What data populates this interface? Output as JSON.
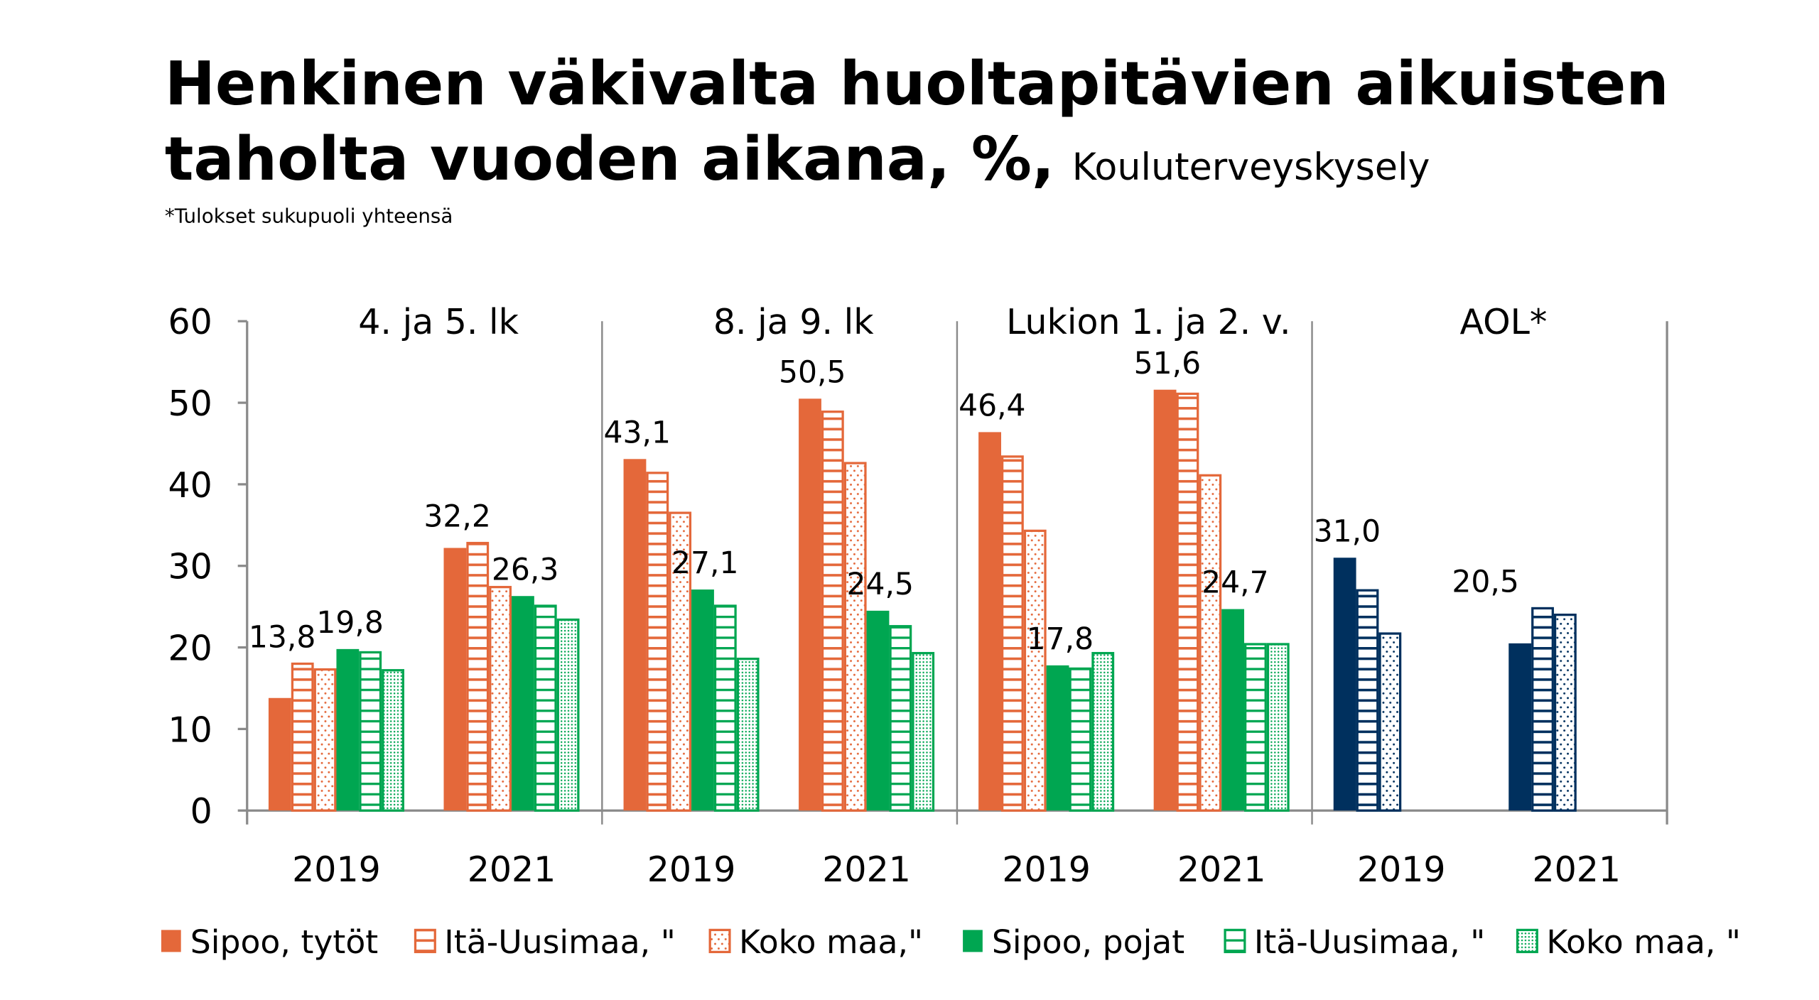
{
  "chart_data": {
    "type": "bar",
    "title": "Henkinen väkivalta huoltapitävien aikuisten taholta vuoden aikana, %,",
    "title_line1": "Henkinen väkivalta huoltapitävien aikuisten",
    "title_line2": "taholta vuoden aikana, %,",
    "subtitle": "Kouluterveyskysely",
    "note": "*Tulokset sukupuoli yhteensä",
    "ylim": [
      0,
      60
    ],
    "yticks": [
      "0",
      "10",
      "20",
      "30",
      "40",
      "50",
      "60"
    ],
    "grid": false,
    "legend_position": "bottom",
    "colors": {
      "girls": "#E4683A",
      "boys": "#00A651",
      "aol": "#00305E"
    },
    "panels": [
      {
        "label": "4. ja 5. lk",
        "years": [
          {
            "year": "2019",
            "values": [
              13.8,
              18.0,
              17.3,
              19.8,
              19.4,
              17.2
            ],
            "labels": [
              "13,8",
              "",
              "",
              "19,8",
              "",
              ""
            ]
          },
          {
            "year": "2021",
            "values": [
              32.2,
              32.8,
              27.4,
              26.3,
              25.1,
              23.4
            ],
            "labels": [
              "32,2",
              "",
              "",
              "26,3",
              "",
              ""
            ]
          }
        ]
      },
      {
        "label": "8. ja 9. lk",
        "years": [
          {
            "year": "2019",
            "values": [
              43.1,
              41.4,
              36.5,
              27.1,
              25.1,
              18.6
            ],
            "labels": [
              "43,1",
              "",
              "",
              "27,1",
              "",
              ""
            ]
          },
          {
            "year": "2021",
            "values": [
              50.5,
              48.9,
              42.6,
              24.5,
              22.6,
              19.3
            ],
            "labels": [
              "50,5",
              "",
              "",
              "24,5",
              "",
              ""
            ]
          }
        ]
      },
      {
        "label": "Lukion 1. ja 2. v.",
        "years": [
          {
            "year": "2019",
            "values": [
              46.4,
              43.4,
              34.3,
              17.8,
              17.4,
              19.3
            ],
            "labels": [
              "46,4",
              "",
              "",
              "17,8",
              "",
              ""
            ]
          },
          {
            "year": "2021",
            "values": [
              51.6,
              51.1,
              41.1,
              24.7,
              20.4,
              20.4
            ],
            "labels": [
              "51,6",
              "",
              "",
              "24,7",
              "",
              ""
            ]
          }
        ]
      },
      {
        "label": "AOL*",
        "years": [
          {
            "year": "2019",
            "values": [
              31.0,
              27.0,
              21.7
            ],
            "labels": [
              "31,0",
              "",
              ""
            ]
          },
          {
            "year": "2021",
            "values": [
              20.5,
              24.8,
              24.0
            ],
            "labels": [
              "20,5",
              "",
              ""
            ]
          }
        ]
      }
    ],
    "series": [
      {
        "name": "Sipoo, tytöt",
        "pattern": "solid",
        "color": "#E4683A"
      },
      {
        "name": "Itä-Uusimaa, \"",
        "pattern": "horizontal-lines",
        "color": "#E4683A"
      },
      {
        "name": "Koko maa,\"",
        "pattern": "dots",
        "color": "#E4683A"
      },
      {
        "name": "Sipoo, pojat",
        "pattern": "solid",
        "color": "#00A651"
      },
      {
        "name": "Itä-Uusimaa, \"",
        "pattern": "horizontal-lines",
        "color": "#00A651"
      },
      {
        "name": "Koko maa, \"",
        "pattern": "dense-dots",
        "color": "#00A651"
      }
    ]
  }
}
